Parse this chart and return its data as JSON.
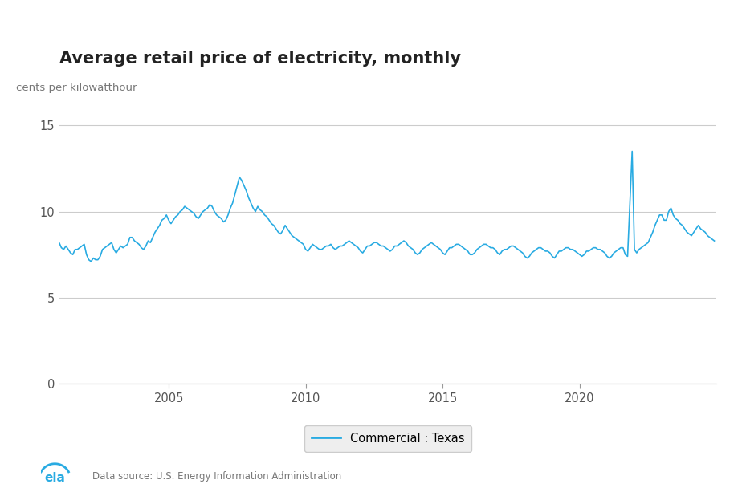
{
  "title": "Average retail price of electricity, monthly",
  "ylabel": "cents per kilowatthour",
  "line_color": "#29ABE2",
  "line_width": 1.2,
  "background_color": "#FFFFFF",
  "grid_color": "#CCCCCC",
  "yticks": [
    0,
    5,
    10,
    15
  ],
  "ylim": [
    0,
    16.0
  ],
  "xlim_start": 2001.0,
  "xlim_end": 2025.0,
  "xticks": [
    2005,
    2010,
    2015,
    2020
  ],
  "start_year": 2001,
  "start_month": 1,
  "legend_label": "Commercial : Texas",
  "source_text": "Data source: U.S. Energy Information Administration",
  "values": [
    8.2,
    7.9,
    7.8,
    8.0,
    7.8,
    7.6,
    7.5,
    7.8,
    7.8,
    7.9,
    8.0,
    8.1,
    7.5,
    7.2,
    7.1,
    7.3,
    7.2,
    7.2,
    7.4,
    7.8,
    7.9,
    8.0,
    8.1,
    8.2,
    7.8,
    7.6,
    7.8,
    8.0,
    7.9,
    8.0,
    8.1,
    8.5,
    8.5,
    8.3,
    8.2,
    8.1,
    7.9,
    7.8,
    8.0,
    8.3,
    8.2,
    8.5,
    8.8,
    9.0,
    9.2,
    9.5,
    9.6,
    9.8,
    9.5,
    9.3,
    9.5,
    9.7,
    9.8,
    10.0,
    10.1,
    10.3,
    10.2,
    10.1,
    10.0,
    9.9,
    9.7,
    9.6,
    9.8,
    10.0,
    10.1,
    10.2,
    10.4,
    10.3,
    10.0,
    9.8,
    9.7,
    9.6,
    9.4,
    9.5,
    9.8,
    10.2,
    10.5,
    11.0,
    11.5,
    12.0,
    11.8,
    11.5,
    11.2,
    10.8,
    10.5,
    10.2,
    10.0,
    10.3,
    10.1,
    10.0,
    9.8,
    9.7,
    9.5,
    9.3,
    9.2,
    9.0,
    8.8,
    8.7,
    8.9,
    9.2,
    9.0,
    8.8,
    8.6,
    8.5,
    8.4,
    8.3,
    8.2,
    8.1,
    7.8,
    7.7,
    7.9,
    8.1,
    8.0,
    7.9,
    7.8,
    7.8,
    7.9,
    8.0,
    8.0,
    8.1,
    7.9,
    7.8,
    7.9,
    8.0,
    8.0,
    8.1,
    8.2,
    8.3,
    8.2,
    8.1,
    8.0,
    7.9,
    7.7,
    7.6,
    7.8,
    8.0,
    8.0,
    8.1,
    8.2,
    8.2,
    8.1,
    8.0,
    8.0,
    7.9,
    7.8,
    7.7,
    7.8,
    8.0,
    8.0,
    8.1,
    8.2,
    8.3,
    8.2,
    8.0,
    7.9,
    7.8,
    7.6,
    7.5,
    7.6,
    7.8,
    7.9,
    8.0,
    8.1,
    8.2,
    8.1,
    8.0,
    7.9,
    7.8,
    7.6,
    7.5,
    7.7,
    7.9,
    7.9,
    8.0,
    8.1,
    8.1,
    8.0,
    7.9,
    7.8,
    7.7,
    7.5,
    7.5,
    7.6,
    7.8,
    7.9,
    8.0,
    8.1,
    8.1,
    8.0,
    7.9,
    7.9,
    7.8,
    7.6,
    7.5,
    7.7,
    7.8,
    7.8,
    7.9,
    8.0,
    8.0,
    7.9,
    7.8,
    7.7,
    7.6,
    7.4,
    7.3,
    7.4,
    7.6,
    7.7,
    7.8,
    7.9,
    7.9,
    7.8,
    7.7,
    7.7,
    7.6,
    7.4,
    7.3,
    7.5,
    7.7,
    7.7,
    7.8,
    7.9,
    7.9,
    7.8,
    7.8,
    7.7,
    7.6,
    7.5,
    7.4,
    7.5,
    7.7,
    7.7,
    7.8,
    7.9,
    7.9,
    7.8,
    7.8,
    7.7,
    7.6,
    7.4,
    7.3,
    7.4,
    7.6,
    7.7,
    7.8,
    7.9,
    7.9,
    7.5,
    7.4,
    10.5,
    13.5,
    7.8,
    7.6,
    7.8,
    7.9,
    8.0,
    8.1,
    8.2,
    8.5,
    8.8,
    9.2,
    9.5,
    9.8,
    9.8,
    9.5,
    9.5,
    10.0,
    10.2,
    9.8,
    9.6,
    9.5,
    9.3,
    9.2,
    9.0,
    8.8,
    8.7,
    8.6,
    8.8,
    9.0,
    9.2,
    9.0,
    8.9,
    8.8,
    8.6,
    8.5,
    8.4,
    8.3
  ]
}
